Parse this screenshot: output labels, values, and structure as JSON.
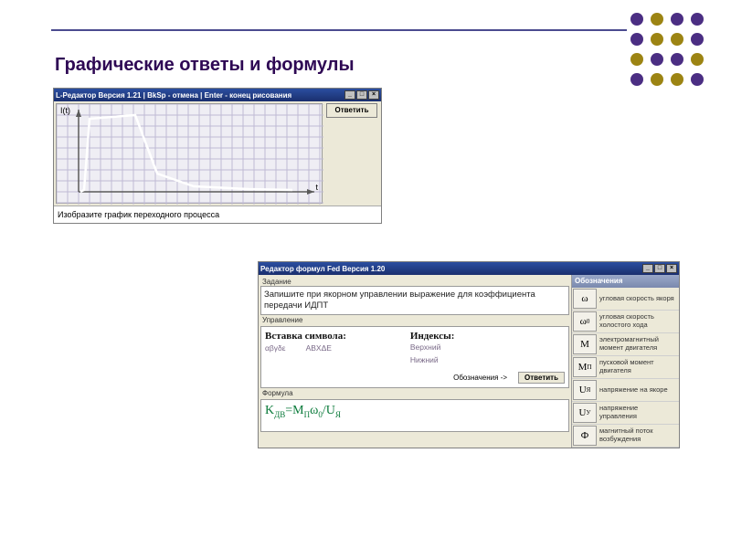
{
  "slide": {
    "title": "Графические ответы и формулы",
    "accent_color": "#4b4b8f",
    "title_color": "#2e0854"
  },
  "dots": {
    "palette": [
      "#4b2e83",
      "#9c8413",
      "#4b2e83",
      "#4b2e83",
      "#4b2e83",
      "#9c8413",
      "#9c8413",
      "#4b2e83",
      "#9c8413",
      "#4b2e83",
      "#4b2e83",
      "#9c8413",
      "#4b2e83",
      "#9c8413",
      "#9c8413",
      "#4b2e83"
    ]
  },
  "win1": {
    "title": "L-Редактор  Версия 1.21 |  BkSp - отмена  |  Enter - конец рисования",
    "answer_button": "Ответить",
    "caption": "Изобразите график переходного процесса",
    "plot": {
      "y_label": "I(t)",
      "x_label": "t",
      "bg_color": "#efeef4",
      "grid_color": "#bfbad4",
      "axis_color": "#5a5a5a",
      "curve_color": "#ffffff",
      "xlim": [
        0,
        280
      ],
      "ylim": [
        0,
        100
      ],
      "grid_step": 12,
      "curve_points": [
        [
          26,
          96
        ],
        [
          30,
          94
        ],
        [
          36,
          16
        ],
        [
          86,
          12
        ],
        [
          110,
          76
        ],
        [
          150,
          90
        ],
        [
          210,
          93
        ],
        [
          258,
          94
        ]
      ]
    }
  },
  "win2": {
    "title": "Редактор формул Fed   Версия 1.20",
    "labels": {
      "task": "Задание",
      "control": "Управление",
      "formula": "Формула"
    },
    "task_text": "Запишите при якорном управлении выражение для коэффициента передачи ИДПТ",
    "control": {
      "insert_title": "Вставка символа:",
      "greek1": "αβγδε",
      "greek2": "ΑΒΧΔΕ",
      "index_title": "Индексы:",
      "idx_top": "Верхний",
      "idx_bot": "Нижний",
      "notation": "Обозначения ->",
      "answer": "Ответить"
    },
    "formula_html": "K<sub>ДВ</sub>=M<sub>П</sub>ω<sub>0</sub>/U<sub>Я</sub>",
    "side": {
      "title": "Обозначения",
      "items": [
        {
          "sym": "ω",
          "desc": "угловая скорость якоря"
        },
        {
          "sym": "ω<sub>0</sub>",
          "desc": "угловая скорость холостого хода"
        },
        {
          "sym": "M",
          "desc": "электромагнитный момент двигателя"
        },
        {
          "sym": "M<sub>П</sub>",
          "desc": "пусковой момент двигателя"
        },
        {
          "sym": "U<sub>Я</sub>",
          "desc": "напряжение на якоре"
        },
        {
          "sym": "U<sub>У</sub>",
          "desc": "напряжение управления"
        },
        {
          "sym": "Ф",
          "desc": "магнитный поток возбуждения"
        }
      ]
    }
  }
}
